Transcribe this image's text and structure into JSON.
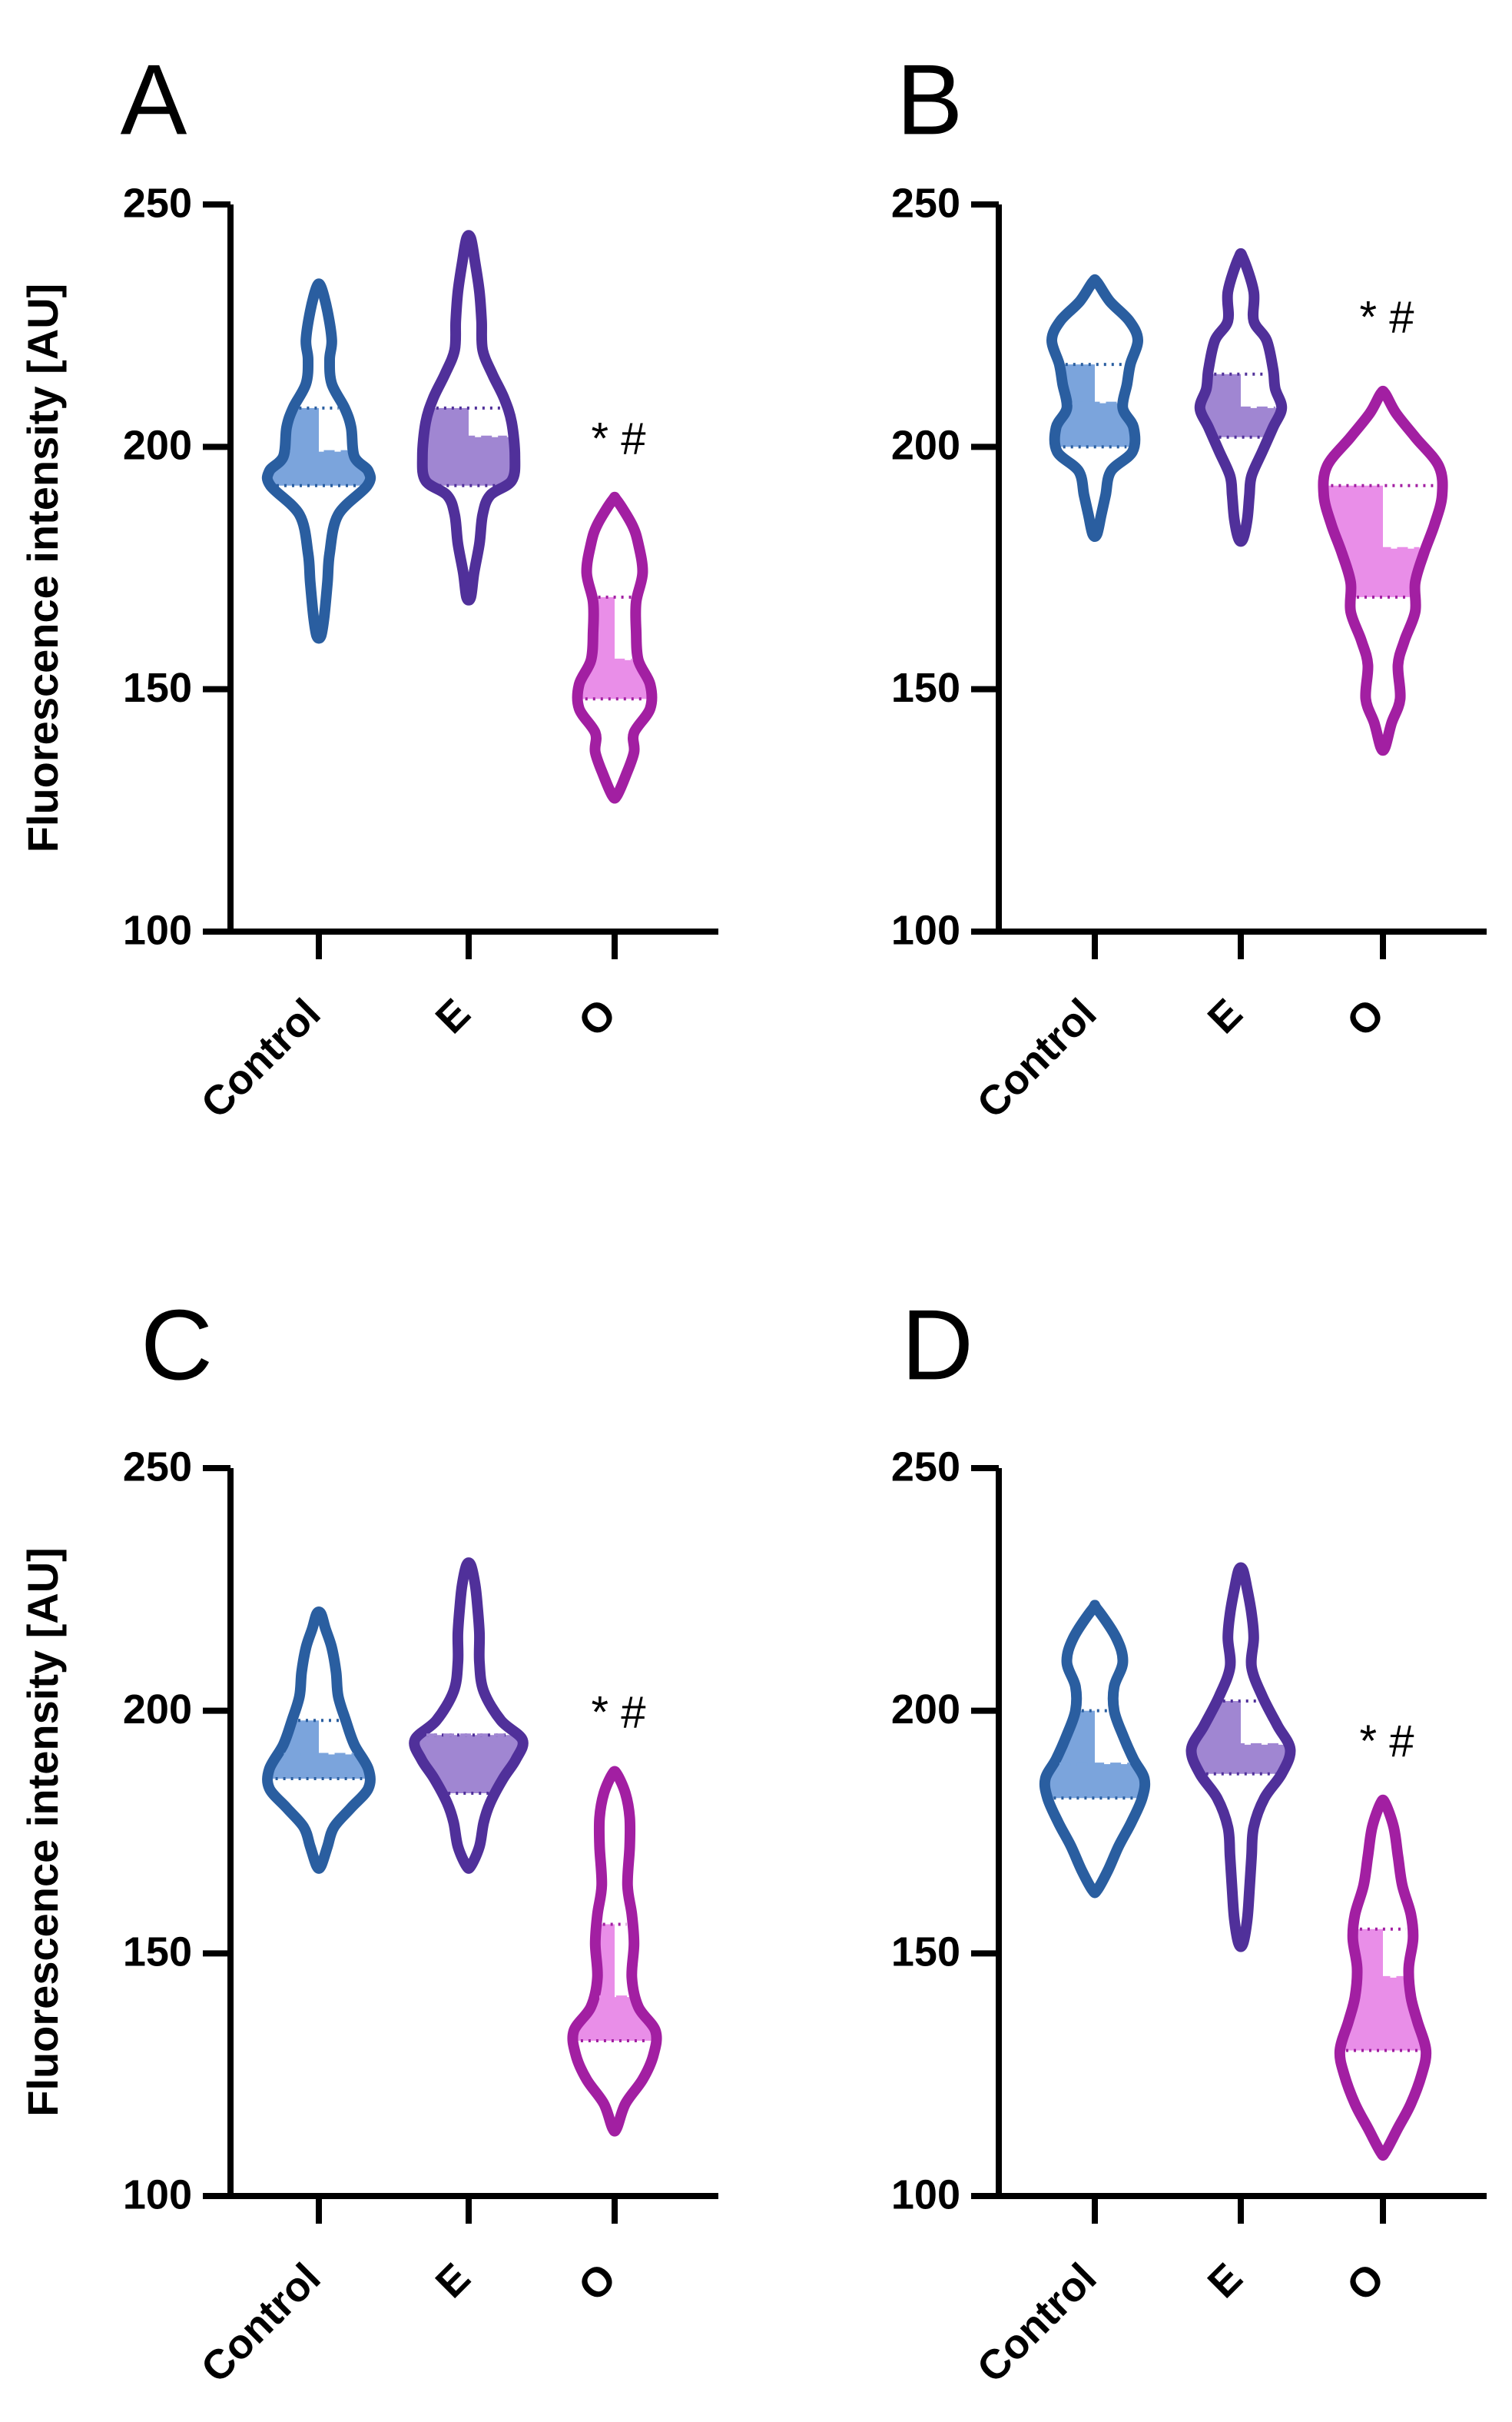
{
  "colors": {
    "control": "#2a5ea0",
    "control_fill": "#7ba4dc",
    "e": "#50309a",
    "e_fill": "#a086d2",
    "o": "#a21fa2",
    "o_fill": "#e98ee8",
    "axis": "#000000"
  },
  "chart_data": [
    {
      "type": "violin",
      "panel": "A",
      "ylabel": "Fluorescence intensity [AU]",
      "ylim": [
        100,
        250
      ],
      "yticks": [
        "100",
        "150",
        "200",
        "250"
      ],
      "categories": [
        "Control",
        "E",
        "O"
      ],
      "annotation": {
        "category": "O",
        "text": "*  #",
        "value": 201
      },
      "series": [
        {
          "name": "Control",
          "median": 199,
          "q1": 192,
          "q3": 208,
          "min": 161,
          "max": 233,
          "profile": [
            [
              161,
              0.02
            ],
            [
              165,
              0.05
            ],
            [
              172,
              0.08
            ],
            [
              178,
              0.1
            ],
            [
              186,
              0.18
            ],
            [
              192,
              0.45
            ],
            [
              195,
              0.46
            ],
            [
              198,
              0.33
            ],
            [
              204,
              0.3
            ],
            [
              208,
              0.24
            ],
            [
              213,
              0.12
            ],
            [
              218,
              0.1
            ],
            [
              222,
              0.12
            ],
            [
              228,
              0.08
            ],
            [
              233,
              0.02
            ]
          ]
        },
        {
          "name": "E",
          "median": 202,
          "q1": 192,
          "q3": 208,
          "min": 169,
          "max": 243,
          "profile": [
            [
              169,
              0.02
            ],
            [
              174,
              0.05
            ],
            [
              180,
              0.1
            ],
            [
              186,
              0.13
            ],
            [
              190,
              0.2
            ],
            [
              193,
              0.4
            ],
            [
              198,
              0.43
            ],
            [
              205,
              0.4
            ],
            [
              210,
              0.33
            ],
            [
              215,
              0.22
            ],
            [
              220,
              0.13
            ],
            [
              226,
              0.12
            ],
            [
              232,
              0.1
            ],
            [
              238,
              0.06
            ],
            [
              243,
              0.02
            ]
          ]
        },
        {
          "name": "O",
          "median": 156,
          "q1": 148,
          "q3": 169,
          "min": 128,
          "max": 189,
          "profile": [
            [
              128,
              0.02
            ],
            [
              132,
              0.1
            ],
            [
              137,
              0.18
            ],
            [
              141,
              0.18
            ],
            [
              146,
              0.33
            ],
            [
              151,
              0.33
            ],
            [
              156,
              0.22
            ],
            [
              162,
              0.2
            ],
            [
              168,
              0.2
            ],
            [
              174,
              0.26
            ],
            [
              180,
              0.22
            ],
            [
              184,
              0.16
            ],
            [
              189,
              0.02
            ]
          ]
        }
      ]
    },
    {
      "type": "violin",
      "panel": "B",
      "ylabel": "",
      "ylim": [
        100,
        250
      ],
      "yticks": [
        "100",
        "150",
        "200",
        "250"
      ],
      "categories": [
        "Control",
        "E",
        "O"
      ],
      "annotation": {
        "category": "O",
        "text": "*  #",
        "value": 226
      },
      "series": [
        {
          "name": "Control",
          "median": 209,
          "q1": 200,
          "q3": 217,
          "min": 182,
          "max": 234,
          "profile": [
            [
              182,
              0.02
            ],
            [
              186,
              0.06
            ],
            [
              190,
              0.1
            ],
            [
              195,
              0.15
            ],
            [
              199,
              0.35
            ],
            [
              204,
              0.36
            ],
            [
              208,
              0.26
            ],
            [
              213,
              0.3
            ],
            [
              217,
              0.33
            ],
            [
              222,
              0.4
            ],
            [
              226,
              0.32
            ],
            [
              230,
              0.14
            ],
            [
              234,
              0.02
            ]
          ]
        },
        {
          "name": "E",
          "median": 208,
          "q1": 202,
          "q3": 215,
          "min": 181,
          "max": 239,
          "profile": [
            [
              181,
              0.02
            ],
            [
              185,
              0.06
            ],
            [
              190,
              0.08
            ],
            [
              194,
              0.1
            ],
            [
              199,
              0.2
            ],
            [
              204,
              0.3
            ],
            [
              208,
              0.38
            ],
            [
              212,
              0.32
            ],
            [
              216,
              0.3
            ],
            [
              222,
              0.24
            ],
            [
              226,
              0.12
            ],
            [
              232,
              0.12
            ],
            [
              239,
              0.02
            ]
          ]
        },
        {
          "name": "O",
          "median": 179,
          "q1": 169,
          "q3": 192,
          "min": 138,
          "max": 211,
          "profile": [
            [
              138,
              0.02
            ],
            [
              143,
              0.08
            ],
            [
              148,
              0.16
            ],
            [
              155,
              0.14
            ],
            [
              160,
              0.2
            ],
            [
              166,
              0.3
            ],
            [
              172,
              0.3
            ],
            [
              178,
              0.38
            ],
            [
              184,
              0.48
            ],
            [
              190,
              0.55
            ],
            [
              196,
              0.52
            ],
            [
              202,
              0.3
            ],
            [
              207,
              0.12
            ],
            [
              211,
              0.02
            ]
          ]
        }
      ]
    },
    {
      "type": "violin",
      "panel": "C",
      "ylabel": "Fluorescence intensity [AU]",
      "ylim": [
        100,
        250
      ],
      "yticks": [
        "100",
        "150",
        "200",
        "250"
      ],
      "categories": [
        "Control",
        "E",
        "O"
      ],
      "annotation": {
        "category": "O",
        "text": "*  #",
        "value": 199
      },
      "series": [
        {
          "name": "Control",
          "median": 191,
          "q1": 186,
          "q3": 198,
          "min": 168,
          "max": 220,
          "profile": [
            [
              168,
              0.02
            ],
            [
              172,
              0.08
            ],
            [
              176,
              0.14
            ],
            [
              180,
              0.3
            ],
            [
              184,
              0.46
            ],
            [
              188,
              0.46
            ],
            [
              193,
              0.33
            ],
            [
              198,
              0.25
            ],
            [
              203,
              0.18
            ],
            [
              208,
              0.16
            ],
            [
              213,
              0.12
            ],
            [
              217,
              0.06
            ],
            [
              220,
              0.02
            ]
          ]
        },
        {
          "name": "E",
          "median": 195,
          "q1": 183,
          "q3": 195,
          "min": 168,
          "max": 230,
          "profile": [
            [
              168,
              0.02
            ],
            [
              172,
              0.1
            ],
            [
              177,
              0.14
            ],
            [
              181,
              0.2
            ],
            [
              186,
              0.32
            ],
            [
              190,
              0.44
            ],
            [
              194,
              0.5
            ],
            [
              198,
              0.3
            ],
            [
              204,
              0.14
            ],
            [
              210,
              0.1
            ],
            [
              216,
              0.1
            ],
            [
              222,
              0.08
            ],
            [
              226,
              0.06
            ],
            [
              230,
              0.02
            ]
          ]
        },
        {
          "name": "O",
          "median": 141,
          "q1": 132,
          "q3": 156,
          "min": 114,
          "max": 187,
          "profile": [
            [
              114,
              0.02
            ],
            [
              119,
              0.1
            ],
            [
              124,
              0.26
            ],
            [
              129,
              0.36
            ],
            [
              134,
              0.38
            ],
            [
              139,
              0.22
            ],
            [
              145,
              0.16
            ],
            [
              152,
              0.18
            ],
            [
              158,
              0.16
            ],
            [
              164,
              0.12
            ],
            [
              172,
              0.14
            ],
            [
              178,
              0.14
            ],
            [
              183,
              0.1
            ],
            [
              187,
              0.02
            ]
          ]
        }
      ]
    },
    {
      "type": "violin",
      "panel": "D",
      "ylabel": "",
      "ylim": [
        100,
        250
      ],
      "yticks": [
        "100",
        "150",
        "200",
        "250"
      ],
      "categories": [
        "Control",
        "E",
        "O"
      ],
      "annotation": {
        "category": "O",
        "text": "*  #",
        "value": 193
      },
      "series": [
        {
          "name": "Control",
          "median": 189,
          "q1": 182,
          "q3": 200,
          "min": 163,
          "max": 221,
          "profile": [
            [
              163,
              0.02
            ],
            [
              167,
              0.12
            ],
            [
              172,
              0.22
            ],
            [
              177,
              0.34
            ],
            [
              182,
              0.44
            ],
            [
              186,
              0.46
            ],
            [
              190,
              0.36
            ],
            [
              195,
              0.26
            ],
            [
              200,
              0.18
            ],
            [
              205,
              0.18
            ],
            [
              210,
              0.26
            ],
            [
              215,
              0.2
            ],
            [
              221,
              0.02
            ]
          ]
        },
        {
          "name": "E",
          "median": 193,
          "q1": 187,
          "q3": 202,
          "min": 152,
          "max": 229,
          "profile": [
            [
              152,
              0.02
            ],
            [
              157,
              0.06
            ],
            [
              163,
              0.08
            ],
            [
              170,
              0.1
            ],
            [
              176,
              0.12
            ],
            [
              182,
              0.22
            ],
            [
              187,
              0.38
            ],
            [
              192,
              0.46
            ],
            [
              197,
              0.34
            ],
            [
              203,
              0.2
            ],
            [
              209,
              0.1
            ],
            [
              215,
              0.12
            ],
            [
              220,
              0.1
            ],
            [
              225,
              0.06
            ],
            [
              229,
              0.02
            ]
          ]
        },
        {
          "name": "O",
          "median": 145,
          "q1": 130,
          "q3": 155,
          "min": 109,
          "max": 181,
          "profile": [
            [
              109,
              0.02
            ],
            [
              114,
              0.14
            ],
            [
              119,
              0.26
            ],
            [
              125,
              0.36
            ],
            [
              130,
              0.4
            ],
            [
              136,
              0.32
            ],
            [
              141,
              0.26
            ],
            [
              147,
              0.24
            ],
            [
              153,
              0.28
            ],
            [
              158,
              0.26
            ],
            [
              164,
              0.18
            ],
            [
              170,
              0.14
            ],
            [
              176,
              0.1
            ],
            [
              181,
              0.02
            ]
          ]
        }
      ]
    }
  ]
}
